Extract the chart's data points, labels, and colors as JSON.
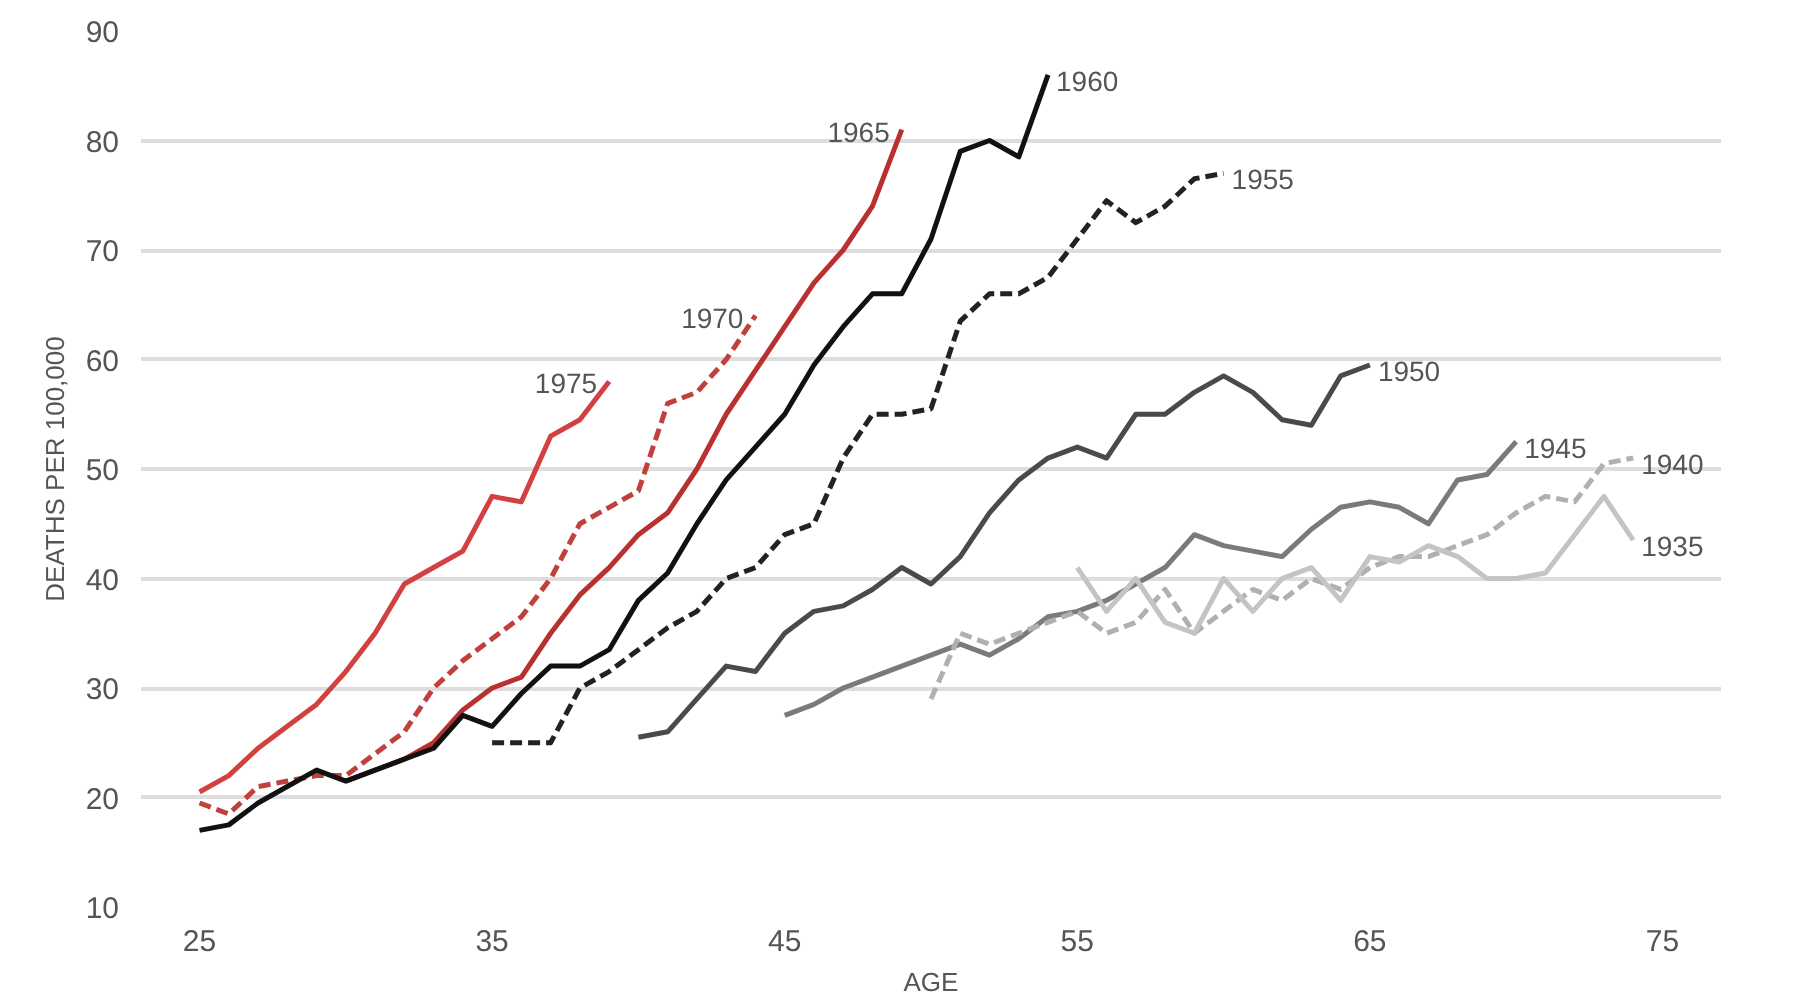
{
  "chart_data": {
    "type": "line",
    "xlabel": "AGE",
    "ylabel": "DEATHS PER 100,000",
    "xlim": [
      23,
      77
    ],
    "ylim": [
      10,
      90
    ],
    "xticks": [
      25,
      35,
      45,
      55,
      65,
      75
    ],
    "yticks": [
      10,
      20,
      30,
      40,
      50,
      60,
      70,
      80,
      90
    ],
    "grid": "y",
    "series": [
      {
        "name": "1975",
        "color": "#d2413f",
        "line_style": "solid",
        "x": [
          25,
          26,
          27,
          28,
          29,
          30,
          31,
          32,
          33,
          34,
          35,
          36,
          37,
          38,
          39
        ],
        "values": [
          20.5,
          22,
          24.5,
          26.5,
          28.5,
          31.5,
          35,
          39.5,
          41,
          42.5,
          47.5,
          47,
          53,
          54.5,
          58
        ]
      },
      {
        "name": "1970",
        "color": "#c0403c",
        "line_style": "dashed",
        "x": [
          25,
          26,
          27,
          28,
          29,
          30,
          31,
          32,
          33,
          34,
          35,
          36,
          37,
          38,
          39,
          40,
          41,
          42,
          43,
          44
        ],
        "values": [
          19.5,
          18.5,
          21,
          21.5,
          22,
          22,
          24,
          26,
          30,
          32.5,
          34.5,
          36.5,
          40,
          45,
          46.5,
          48,
          56,
          57,
          60,
          64
        ]
      },
      {
        "name": "1965",
        "color": "#b8312f",
        "line_style": "solid",
        "x": [
          30,
          31,
          32,
          33,
          34,
          35,
          36,
          37,
          38,
          39,
          40,
          41,
          42,
          43,
          44,
          45,
          46,
          47,
          48,
          49
        ],
        "values": [
          21.5,
          22.5,
          23.5,
          25,
          28,
          30,
          31,
          35,
          38.5,
          41,
          44,
          46,
          50,
          55,
          59,
          63,
          67,
          70,
          74,
          81
        ]
      },
      {
        "name": "1960",
        "color": "#111111",
        "line_style": "solid",
        "x": [
          25,
          26,
          27,
          28,
          29,
          30,
          31,
          32,
          33,
          34,
          35,
          36,
          37,
          38,
          39,
          40,
          41,
          42,
          43,
          44,
          45,
          46,
          47,
          48,
          49,
          50,
          51,
          52,
          53,
          54
        ],
        "values": [
          17,
          17.5,
          19.5,
          21,
          22.5,
          21.5,
          22.5,
          23.5,
          24.5,
          27.5,
          26.5,
          29.5,
          32,
          32,
          33.5,
          38,
          40.5,
          45,
          49,
          52,
          55,
          59.5,
          63,
          66,
          66,
          71,
          79,
          80,
          78.5,
          86
        ]
      },
      {
        "name": "1955",
        "color": "#222222",
        "line_style": "dashed",
        "x": [
          35,
          36,
          37,
          38,
          39,
          40,
          41,
          42,
          43,
          44,
          45,
          46,
          47,
          48,
          49,
          50,
          51,
          52,
          53,
          54,
          55,
          56,
          57,
          58,
          59,
          60
        ],
        "values": [
          25,
          25,
          25,
          30,
          31.5,
          33.5,
          35.5,
          37,
          40,
          41,
          44,
          45,
          51,
          55,
          55,
          55.5,
          63.5,
          66,
          66,
          67.5,
          71,
          74.5,
          72.5,
          74,
          76.5,
          77
        ]
      },
      {
        "name": "1950",
        "color": "#4a4a4a",
        "line_style": "solid",
        "x": [
          40,
          41,
          42,
          43,
          44,
          45,
          46,
          47,
          48,
          49,
          50,
          51,
          52,
          53,
          54,
          55,
          56,
          57,
          58,
          59,
          60,
          61,
          62,
          63,
          64,
          65
        ],
        "values": [
          25.5,
          26,
          29,
          32,
          31.5,
          35,
          37,
          37.5,
          39,
          41,
          39.5,
          42,
          46,
          49,
          51,
          52,
          51,
          55,
          55,
          57,
          58.5,
          57,
          54.5,
          54,
          58.5,
          59.5
        ]
      },
      {
        "name": "1945",
        "color": "#7a7a7a",
        "line_style": "solid",
        "x": [
          45,
          46,
          47,
          48,
          49,
          50,
          51,
          52,
          53,
          54,
          55,
          56,
          57,
          58,
          59,
          60,
          61,
          62,
          63,
          64,
          65,
          66,
          67,
          68,
          69,
          70
        ],
        "values": [
          27.5,
          28.5,
          30,
          31,
          32,
          33,
          34,
          33,
          34.5,
          36.5,
          37,
          38,
          39.5,
          41,
          44,
          43,
          42.5,
          42,
          44.5,
          46.5,
          47,
          46.5,
          45,
          49,
          49.5,
          52.5
        ]
      },
      {
        "name": "1940",
        "color": "#b0b0b0",
        "line_style": "dashed",
        "x": [
          50,
          51,
          52,
          53,
          54,
          55,
          56,
          57,
          58,
          59,
          60,
          61,
          62,
          63,
          64,
          65,
          66,
          67,
          68,
          69,
          70,
          71,
          72,
          73,
          74
        ],
        "values": [
          29,
          35,
          34,
          35,
          36,
          37,
          35,
          36,
          39,
          35,
          37,
          39,
          38,
          40,
          39,
          41,
          42,
          42,
          43,
          44,
          46,
          47.5,
          47,
          50.5,
          51
        ]
      },
      {
        "name": "1935",
        "color": "#c4c4c4",
        "line_style": "solid",
        "x": [
          55,
          56,
          57,
          58,
          59,
          60,
          61,
          62,
          63,
          64,
          65,
          66,
          67,
          68,
          69,
          70,
          71,
          72,
          73,
          74
        ],
        "values": [
          41,
          37,
          40,
          36,
          35,
          40,
          37,
          40,
          41,
          38,
          42,
          41.5,
          43,
          42,
          40,
          40,
          40.5,
          44,
          47.5,
          43.5
        ]
      }
    ]
  }
}
